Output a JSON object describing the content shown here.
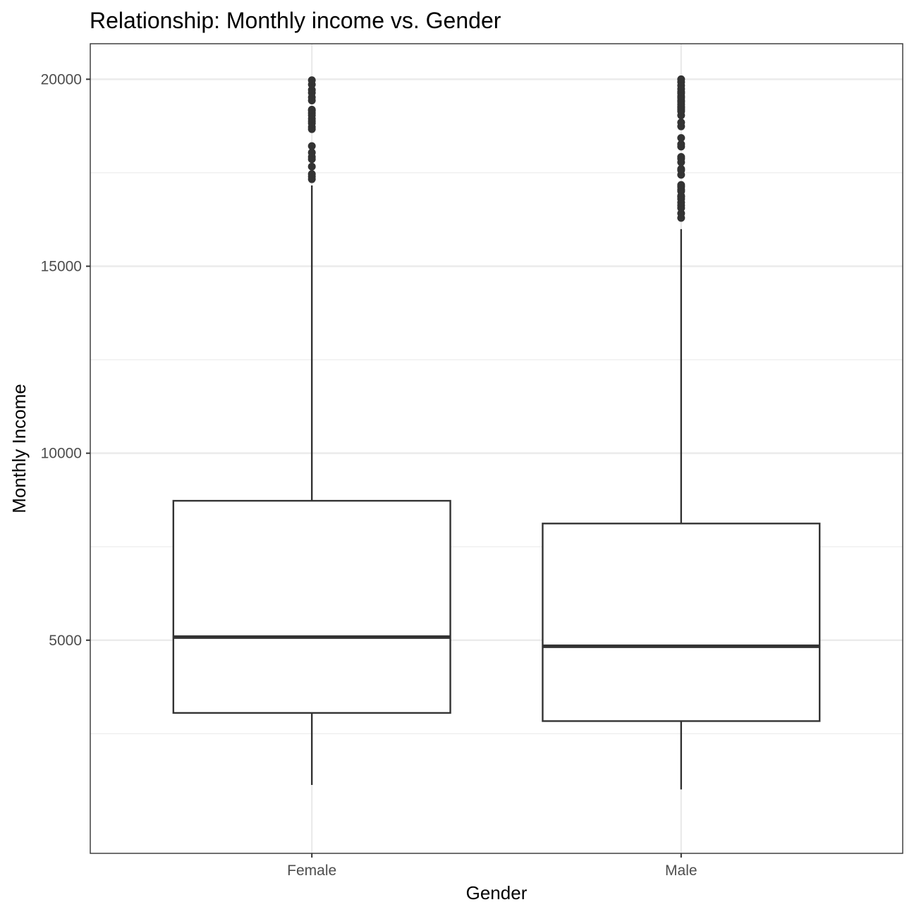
{
  "chart_data": {
    "type": "boxplot",
    "title": "Relationship: Monthly income vs. Gender",
    "xlabel": "Gender",
    "ylabel": "Monthly Income",
    "categories": [
      "Female",
      "Male"
    ],
    "ylim": [
      -700,
      20950
    ],
    "y_ticks": [
      5000,
      10000,
      15000,
      20000
    ],
    "grid": true,
    "boxes": [
      {
        "category": "Female",
        "whisker_low": 1129,
        "q1": 3055,
        "median": 5082,
        "q3": 8728,
        "whisker_high": 17159,
        "outliers": [
          17328,
          17399,
          17465,
          17665,
          17861,
          17924,
          18041,
          18213,
          18665,
          18722,
          18824,
          18880,
          18947,
          19033,
          19094,
          19161,
          19187,
          19431,
          19517,
          19636,
          19717,
          19859,
          19973
        ]
      },
      {
        "category": "Male",
        "whisker_low": 1009,
        "q1": 2837,
        "median": 4838,
        "q3": 8120,
        "whisker_high": 15992,
        "outliers": [
          16291,
          16413,
          16555,
          16627,
          16704,
          16799,
          16856,
          16880,
          17007,
          17046,
          17123,
          17174,
          17444,
          17567,
          17603,
          17779,
          17875,
          17924,
          18200,
          18265,
          18430,
          18740,
          18844,
          19033,
          19141,
          19189,
          19237,
          19272,
          19331,
          19392,
          19431,
          19502,
          19545,
          19626,
          19665,
          19740,
          19833,
          19926,
          19999
        ]
      }
    ]
  }
}
